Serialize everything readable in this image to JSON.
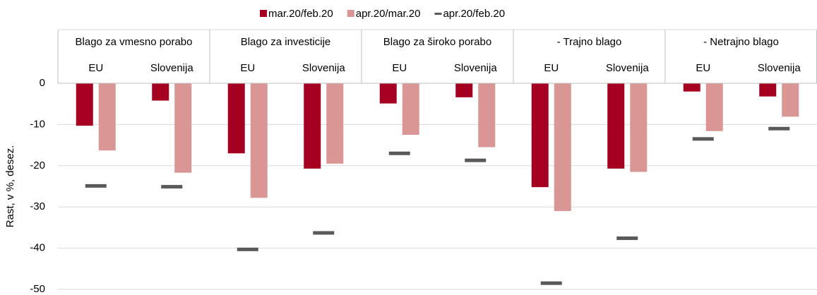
{
  "chart_data": {
    "type": "bar",
    "ylabel": "Rast, v %, desez.",
    "groups": [
      "Blago za vmesno porabo",
      "Blago za investicije",
      "Blago za široko porabo",
      "- Trajno blago",
      "- Netrajno blago"
    ],
    "categories": [
      "EU",
      "Slovenija",
      "EU",
      "Slovenija",
      "EU",
      "Slovenija",
      "EU",
      "Slovenija",
      "EU",
      "Slovenija"
    ],
    "series": [
      {
        "name": "mar.20/feb.20",
        "color": "#a50021",
        "kind": "bar",
        "values": [
          -10.3,
          -4.2,
          -17.0,
          -20.7,
          -4.9,
          -3.4,
          -25.2,
          -20.7,
          -2.0,
          -3.2
        ]
      },
      {
        "name": "apr.20/mar.20",
        "color": "#d99694",
        "kind": "bar",
        "values": [
          -16.3,
          -21.7,
          -27.8,
          -19.5,
          -12.5,
          -15.5,
          -31.0,
          -21.5,
          -11.6,
          -8.1
        ]
      },
      {
        "name": "apr.20/feb.20",
        "color": "#595959",
        "kind": "dash",
        "values": [
          -24.9,
          -25.1,
          -40.3,
          -36.3,
          -17.0,
          -18.7,
          -48.5,
          -37.6,
          -13.5,
          -11.0
        ]
      }
    ],
    "ylim": [
      -50,
      0
    ],
    "yticks": [
      0,
      -10,
      -20,
      -30,
      -40,
      -50
    ],
    "grid": true,
    "legend": "top"
  }
}
